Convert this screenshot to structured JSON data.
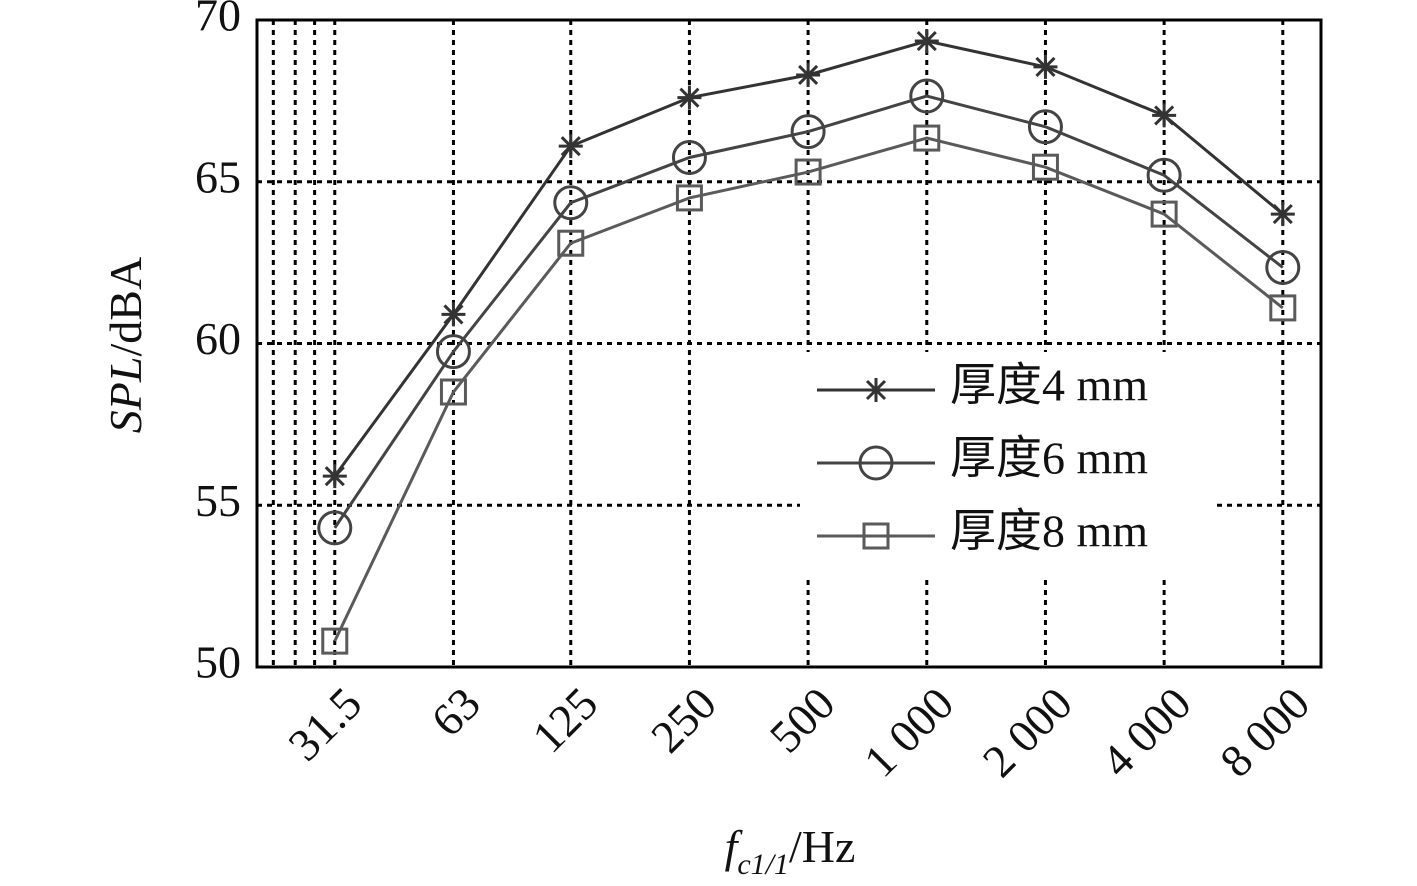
{
  "chart_data": {
    "type": "line",
    "ylabel": [
      "SPL",
      "/dBA"
    ],
    "xlabel": [
      "f",
      "c1/1",
      "/Hz"
    ],
    "xscale": "log",
    "x": [
      31.5,
      63,
      125,
      250,
      500,
      1000,
      2000,
      4000,
      8000
    ],
    "xlim": [
      20,
      10000
    ],
    "xticks": [
      31.5,
      63,
      125,
      250,
      500,
      {
        "value": 1000,
        "label": "1 000"
      },
      {
        "value": 2000,
        "label": "2 000"
      },
      {
        "value": 4000,
        "label": "4 000"
      },
      {
        "value": 8000,
        "label": "8 000"
      }
    ],
    "x_minor_grid": [
      22,
      25,
      28
    ],
    "ylim": [
      50,
      70
    ],
    "yticks": [
      50,
      55,
      60,
      65,
      70
    ],
    "grid": true,
    "legend": "center-right",
    "series": [
      {
        "name": "厚度4 mm",
        "color": "#333333",
        "marker": "star",
        "values": [
          55.9,
          60.9,
          66.1,
          67.6,
          68.3,
          69.35,
          68.55,
          67.05,
          64.0
        ]
      },
      {
        "name": "厚度6 mm",
        "color": "#444444",
        "marker": "circle",
        "values": [
          54.3,
          59.75,
          64.35,
          65.75,
          66.55,
          67.65,
          66.7,
          65.2,
          62.35
        ]
      },
      {
        "name": "厚度8 mm",
        "color": "#5a5a5a",
        "marker": "square",
        "values": [
          50.8,
          58.5,
          63.1,
          64.5,
          65.3,
          66.35,
          65.45,
          64.0,
          61.1
        ]
      }
    ]
  }
}
